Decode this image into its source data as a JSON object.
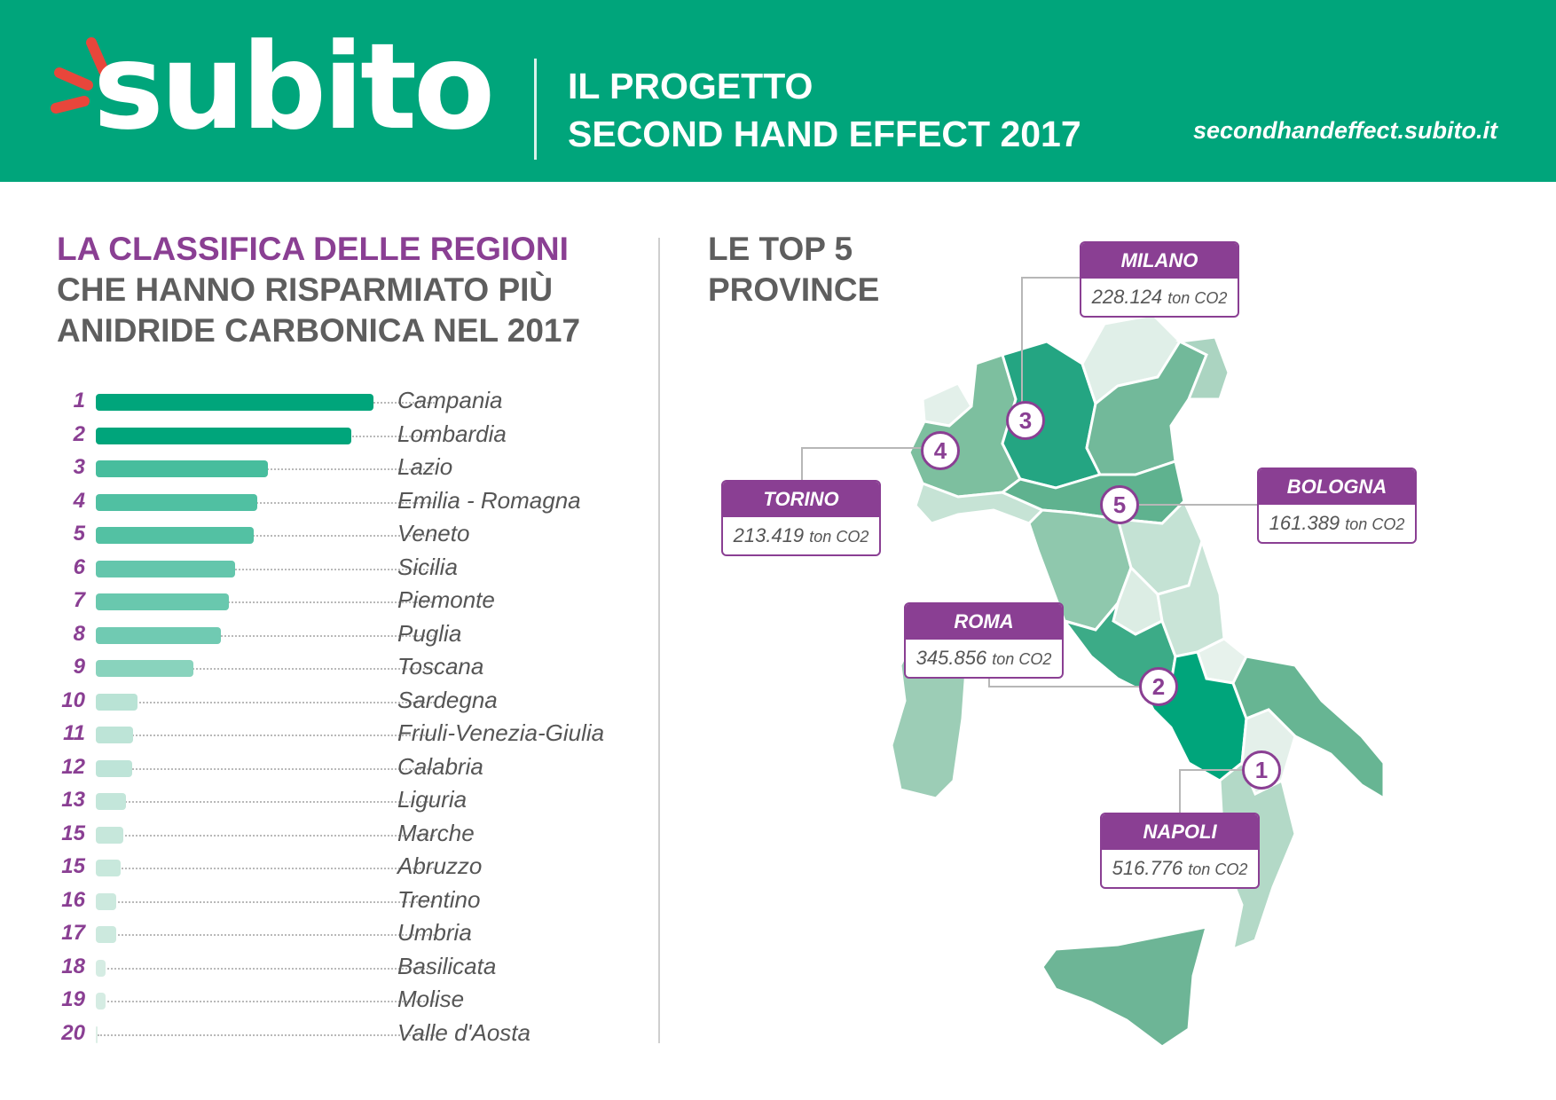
{
  "header": {
    "logo_text": "subito",
    "title_line1": "IL PROGETTO",
    "title_line2": "SECOND HAND EFFECT 2017",
    "url": "secondhandeffect.subito.it"
  },
  "left": {
    "title_line1": "LA CLASSIFICA DELLE REGIONI",
    "title_line2": "CHE HANNO RISPARMIATO PIÙ",
    "title_line3": "ANIDRIDE CARBONICA NEL 2017"
  },
  "right": {
    "title_line1": "LE TOP 5",
    "title_line2": "PROVINCE"
  },
  "colors": {
    "brand_green": "#00a57b",
    "accent_purple": "#8a3f93",
    "logo_rays": "#e8463b"
  },
  "chart_data": [
    {
      "type": "bar",
      "orientation": "horizontal",
      "title": "LA CLASSIFICA DELLE REGIONI CHE HANNO RISPARMIATO PIÙ ANIDRIDE CARBONICA NEL 2017",
      "ranks": [
        "1",
        "2",
        "3",
        "4",
        "5",
        "6",
        "7",
        "8",
        "9",
        "10",
        "11",
        "12",
        "13",
        "15",
        "15",
        "16",
        "17",
        "18",
        "19",
        "20"
      ],
      "categories": [
        "Campania",
        "Lombardia",
        "Lazio",
        "Emilia - Romagna",
        "Veneto",
        "Sicilia",
        "Piemonte",
        "Puglia",
        "Toscana",
        "Sardegna",
        "Friuli-Venezia-Giulia",
        "Calabria",
        "Liguria",
        "Marche",
        "Abruzzo",
        "Trentino",
        "Umbria",
        "Basilicata",
        "Molise",
        "Valle d'Aosta"
      ],
      "values": [
        100,
        92,
        62,
        58,
        57,
        50,
        48,
        45,
        35,
        15,
        13.5,
        13,
        11,
        10,
        9,
        7.5,
        7.5,
        3.5,
        3.5,
        0.5
      ],
      "value_scale": "relative (percent of Campania), no axis printed",
      "grid": false
    },
    {
      "type": "map",
      "title": "LE TOP 5 PROVINCE",
      "provinces": [
        {
          "rank": "1",
          "name": "NAPOLI",
          "value": "516.776",
          "unit": "ton CO2"
        },
        {
          "rank": "2",
          "name": "ROMA",
          "value": "345.856",
          "unit": "ton CO2"
        },
        {
          "rank": "3",
          "name": "MILANO",
          "value": "228.124",
          "unit": "ton CO2"
        },
        {
          "rank": "4",
          "name": "TORINO",
          "value": "213.419",
          "unit": "ton CO2"
        },
        {
          "rank": "5",
          "name": "BOLOGNA",
          "value": "161.389",
          "unit": "ton CO2"
        }
      ]
    }
  ]
}
